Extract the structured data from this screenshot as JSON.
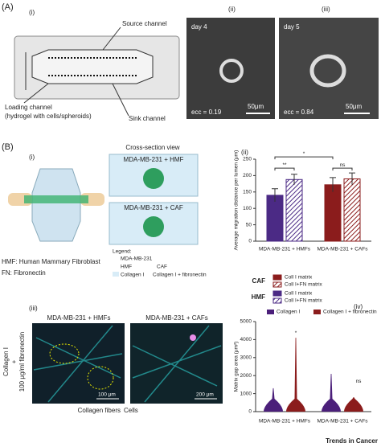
{
  "panel_a": {
    "label": "(A)",
    "i": {
      "label": "(i)",
      "source": "Source channel",
      "sink": "Sink channel",
      "loading": "Loading channel",
      "loading_note": "(hydrogel with cells/spheroids)"
    },
    "ii": {
      "label": "(ii)",
      "day": "day 4",
      "ecc": "ecc = 0.19",
      "scale": "50μm"
    },
    "iii": {
      "label": "(iii)",
      "day": "day 5",
      "ecc": "ecc = 0.84",
      "scale": "50μm"
    }
  },
  "panel_b": {
    "label": "(B)",
    "i": {
      "label": "(i)",
      "view": "Cross-section view",
      "top_box": "MDA-MB-231 + HMF",
      "bottom_box": "MDA-MB-231 + CAF",
      "legend_title": "Legend:",
      "legend": [
        "MDA-MB-231",
        "HMF",
        "CAF",
        "Collagen I",
        "Collagen I + fibronectin"
      ],
      "abbrev_1": "HMF: Human Mammary Fibroblast",
      "abbrev_2": "FN: Fibronectin"
    },
    "ii": {
      "label": "(ii)",
      "legend_groups": [
        "CAF",
        "HMF"
      ]
    },
    "iii": {
      "label": "(iii)",
      "left": "MDA-MB-231 + HMFs",
      "right": "MDA-MB-231 + CAFs",
      "side_1": "Collagen I",
      "side_2": "+",
      "side_3": "100 μg/ml fibronectin",
      "scale_left": "100 μm",
      "scale_right": "200 μm",
      "key_fibers": "Collagen fibers",
      "key_cells": "Cells"
    },
    "iv": {
      "label": "(iv)"
    }
  },
  "chart_data": [
    {
      "type": "bar",
      "ylabel": "Average migration distance per lumen (μm)",
      "categories": [
        "MDA-MB-231 + HMFs",
        "MDA-MB-231 + CAFs"
      ],
      "colors": [
        "#4b2a85",
        "#8b1c1c"
      ],
      "series": [
        {
          "name": "Coll I matrix",
          "hatch": false,
          "values": [
            140,
            172
          ],
          "errors": [
            20,
            22
          ]
        },
        {
          "name": "Coll I+FN matrix",
          "hatch": true,
          "values": [
            188,
            190
          ],
          "errors": [
            16,
            18
          ]
        }
      ],
      "ylim": [
        0,
        250
      ],
      "yticks": [
        0,
        50,
        100,
        150,
        200,
        250
      ],
      "annotations": [
        "**",
        "*",
        "ns"
      ]
    },
    {
      "type": "violin",
      "ylabel": "Matrix gap area (μm²)",
      "categories": [
        "MDA-MB-231 + HMFs",
        "MDA-MB-231 + CAFs"
      ],
      "series": [
        {
          "name": "Collagen I",
          "color": "#4b1f7a",
          "values": [
            1300,
            2100
          ]
        },
        {
          "name": "Collagen I + fibronectin",
          "color": "#8b1c1c",
          "values": [
            4100,
            800
          ]
        }
      ],
      "ylim": [
        0,
        5000
      ],
      "yticks": [
        0,
        1000,
        2000,
        3000,
        4000,
        5000
      ],
      "annotations": [
        "*",
        "ns"
      ]
    }
  ],
  "footer": "Trends in Cancer"
}
